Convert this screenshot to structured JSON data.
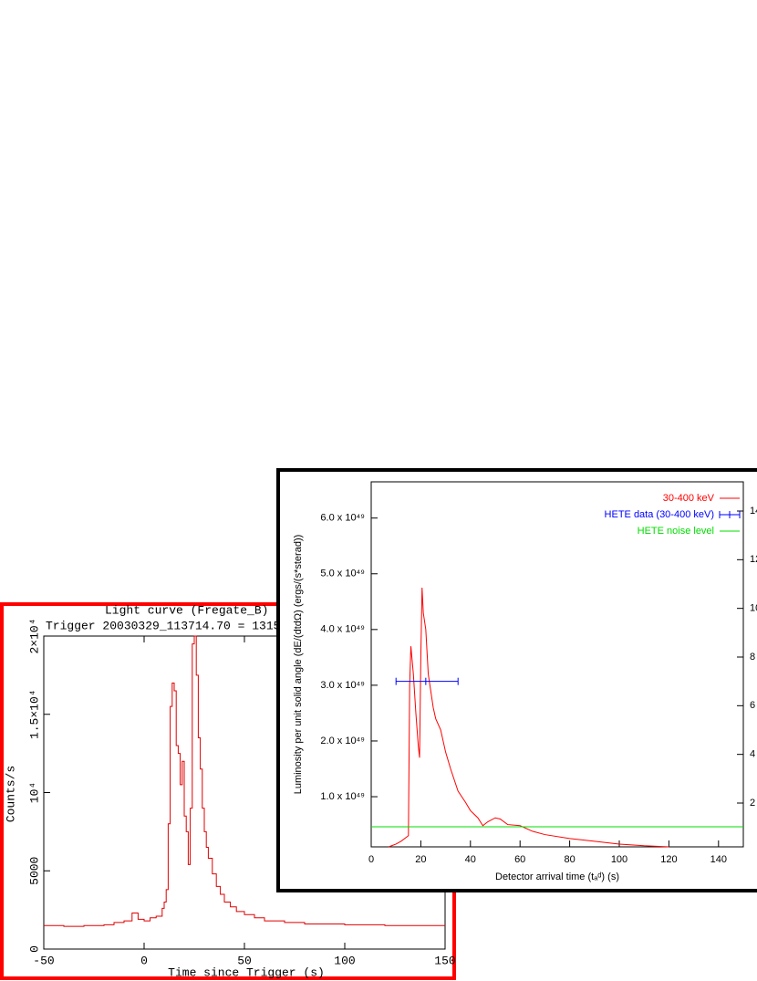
{
  "chart_data": [
    {
      "type": "line",
      "step": true,
      "title": "Light curve (Fregate_B) tha",
      "subtitle": "Trigger 20030329_113714.70 = 1315",
      "x_label": "Time since Trigger (s)",
      "y_label": "Counts/s",
      "xlim": [
        -50,
        150
      ],
      "xticks": [
        -50,
        0,
        50,
        100,
        150
      ],
      "ylim": [
        0,
        20000
      ],
      "yticks": [
        0,
        5000,
        {
          "value": 10000,
          "label": "10⁴"
        },
        {
          "value": 15000,
          "label": "1.5×10⁴"
        },
        {
          "value": 20000,
          "label": "2×10⁴"
        }
      ],
      "frame_color": "#ff0000",
      "series": [
        {
          "color": "#e00000",
          "x": [
            -50,
            -40,
            -30,
            -20,
            -15,
            -10,
            -6,
            -3,
            0,
            3,
            6,
            9,
            10,
            11,
            12,
            13,
            14,
            15,
            16,
            17,
            18,
            19,
            20,
            21,
            22,
            23,
            24,
            25,
            26,
            27,
            28,
            29,
            30,
            31,
            32,
            34,
            36,
            38,
            40,
            43,
            46,
            50,
            55,
            60,
            70,
            80,
            100,
            120,
            140,
            150
          ],
          "values": [
            1500,
            1450,
            1500,
            1550,
            1700,
            1800,
            2300,
            1900,
            1800,
            2000,
            2100,
            2600,
            3000,
            3800,
            8000,
            15500,
            17000,
            16500,
            13000,
            12500,
            10500,
            12000,
            8500,
            7500,
            5400,
            9000,
            19500,
            20000,
            17500,
            13500,
            11500,
            9000,
            7500,
            6500,
            5800,
            4800,
            4000,
            3500,
            3000,
            2700,
            2400,
            2200,
            2000,
            1800,
            1700,
            1600,
            1550,
            1500,
            1500,
            1500
          ]
        }
      ]
    },
    {
      "type": "line",
      "x_label": "Detector arrival time (tₐᵈ) (s)",
      "y_label": "Luminosity per unit solid angle (dE/(dtdΩ) (ergs/(s*sterad))",
      "xlim": [
        0,
        150
      ],
      "xticks": [
        0,
        20,
        40,
        60,
        80,
        100,
        120,
        140
      ],
      "ylim": [
        1e+48,
        6.65e+49
      ],
      "yticks": [
        {
          "value": 1e+49,
          "label": "1.0 x 10⁴⁹"
        },
        {
          "value": 2e+49,
          "label": "2.0 x 10⁴⁹"
        },
        {
          "value": 3e+49,
          "label": "3.0 x 10⁴⁹"
        },
        {
          "value": 4e+49,
          "label": "4.0 x 10⁴⁹"
        },
        {
          "value": 5e+49,
          "label": "5.0 x 10⁴⁹"
        },
        {
          "value": 6e+49,
          "label": "6.0 x 10⁴⁹"
        }
      ],
      "y2lim": [
        0.2,
        15.2
      ],
      "y2ticks": [
        2,
        4,
        6,
        8,
        10,
        12,
        14
      ],
      "frame_color": "#000000",
      "legend": "upper right",
      "series": [
        {
          "name": "30-400 keV",
          "color": "#ff0000",
          "kind": "line",
          "x": [
            7,
            10,
            12,
            15,
            15.5,
            16,
            17,
            18,
            19,
            19.5,
            20,
            20.5,
            21,
            22,
            23,
            24,
            25,
            26,
            28,
            30,
            32,
            35,
            38,
            40,
            43,
            45,
            47,
            50,
            52,
            55,
            60,
            65,
            70,
            80,
            90,
            100,
            110,
            120
          ],
          "values": [
            1e+48,
            1.5e+48,
            2e+48,
            3e+48,
            3e+49,
            3.7e+49,
            3.2e+49,
            2.5e+49,
            1.9e+49,
            1.7e+49,
            3.5e+49,
            4.75e+49,
            4.3e+49,
            4e+49,
            3.2e+49,
            2.9e+49,
            2.6e+49,
            2.4e+49,
            2.2e+49,
            1.8e+49,
            1.5e+49,
            1.1e+49,
            9e+48,
            7.5e+48,
            6.2e+48,
            4.8e+48,
            5.5e+48,
            6.2e+48,
            6e+48,
            5e+48,
            4.8e+48,
            3.8e+48,
            3.2e+48,
            2.5e+48,
            2e+48,
            1.5e+48,
            1.2e+48,
            1e+48
          ]
        },
        {
          "name": "HETE data (30-400 keV)",
          "color": "#0000ff",
          "kind": "errorbar",
          "axis": "y2",
          "x": [
            22
          ],
          "values": [
            7
          ],
          "xerr_minus": [
            12
          ],
          "xerr_plus": [
            13
          ]
        },
        {
          "name": "HETE noise level",
          "color": "#00dd00",
          "kind": "hline",
          "values": [
            4.6e+48
          ]
        }
      ]
    }
  ]
}
